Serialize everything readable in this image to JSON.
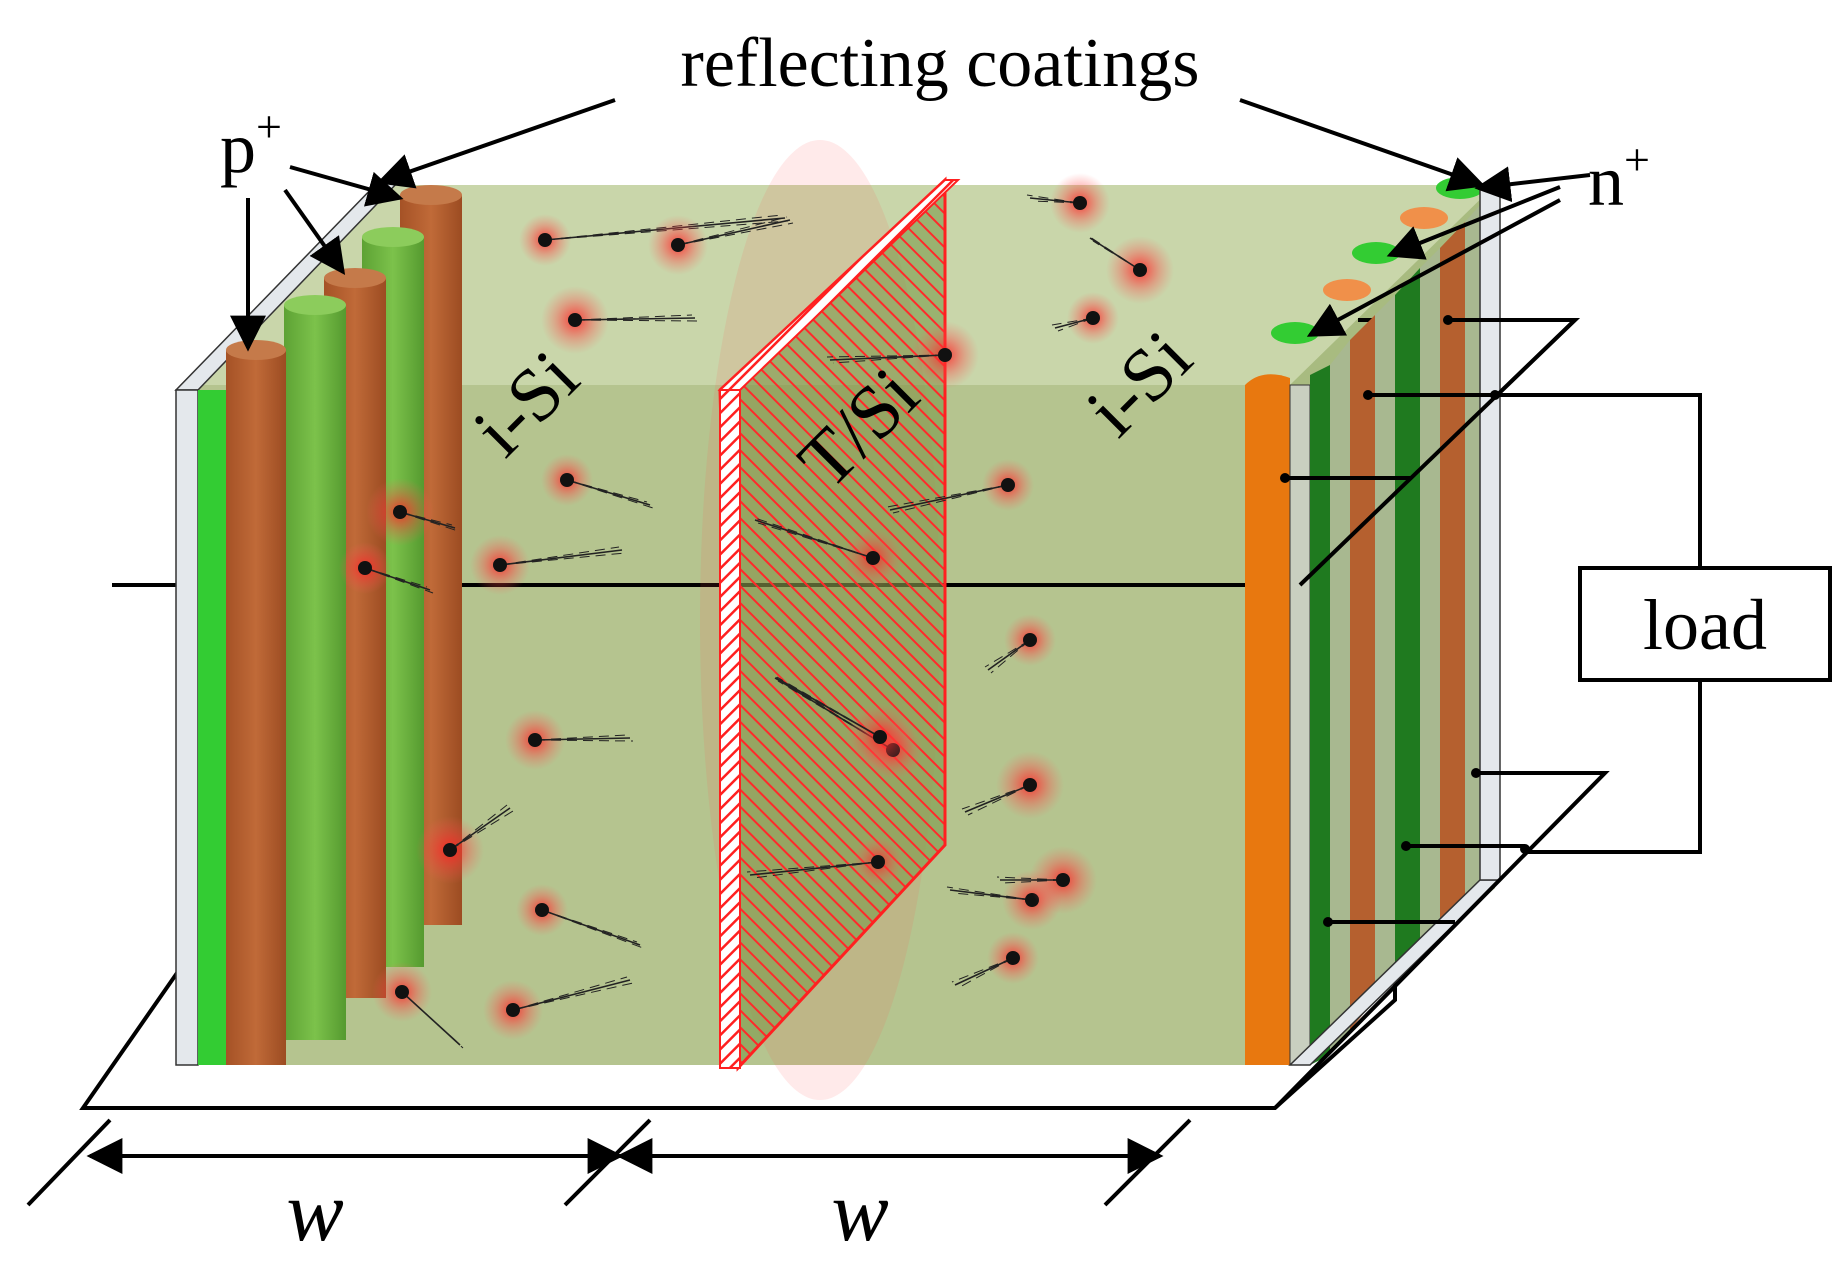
{
  "labels": {
    "reflecting_coatings": "reflecting coatings",
    "p_plus_base": "p",
    "p_plus_sup": "+",
    "n_plus_base": "n",
    "n_plus_sup": "+",
    "isi_left": "i-Si",
    "tsi": "T/Si",
    "isi_right": "i-Si",
    "load": "load",
    "w_left": "w",
    "w_right": "w"
  },
  "colors": {
    "volume": "#b5c48f",
    "volume_top": "#c8d4a8",
    "p_cylinder": "#b5602f",
    "green_cylinder": "#6cb33e",
    "bright_green": "#33cc33",
    "dark_green": "#1f7a1f",
    "orange": "#e8780f",
    "tsi_plane": "#ff2a2a",
    "coating": "#e4e8ec",
    "glow": "#ff3030"
  }
}
